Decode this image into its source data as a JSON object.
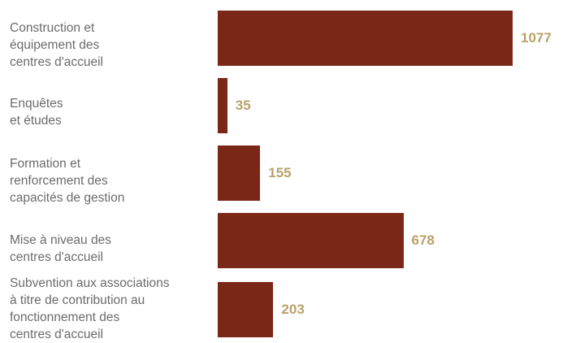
{
  "chart_data": {
    "type": "bar",
    "orientation": "horizontal",
    "categories": [
      "Construction et\néquipement des\ncentres d'accueil",
      "Enquêtes\net études",
      "Formation et\nrenforcement des\ncapacités de gestion",
      "Mise à niveau des\ncentres d'accueil",
      "Subvention aux associations\nà titre de contribution au\nfonctionnement des\ncentres d'accueil"
    ],
    "values": [
      1077,
      35,
      155,
      678,
      203
    ],
    "value_labels": [
      "1077",
      "35",
      "155",
      "678",
      "203"
    ],
    "xlim": [
      0,
      1077
    ],
    "grid": false,
    "legend": "none",
    "colors": {
      "bar": "#7b2718",
      "value_label": "#b8a26b",
      "category_label": "#6b6b6b"
    }
  }
}
